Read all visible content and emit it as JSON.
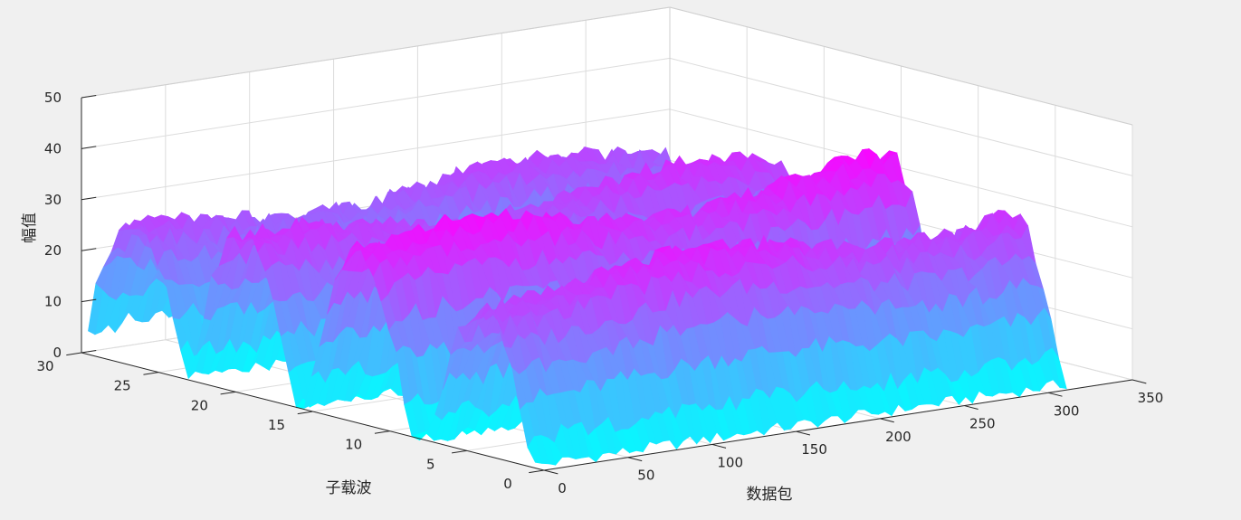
{
  "chart_data": {
    "type": "surface",
    "title": "",
    "xlabel": "数据包",
    "ylabel": "子载波",
    "zlabel": "幅值",
    "xlim": [
      0,
      350
    ],
    "ylim": [
      0,
      30
    ],
    "zlim": [
      0,
      50
    ],
    "xticks": [
      "0",
      "50",
      "100",
      "150",
      "200",
      "250",
      "300",
      "350"
    ],
    "yticks": [
      "0",
      "5",
      "10",
      "15",
      "20",
      "25",
      "30"
    ],
    "zticks": [
      "0",
      "10",
      "20",
      "30",
      "40",
      "50"
    ],
    "grid": true,
    "colormap": {
      "low": "#00ffff",
      "high": "#ff00ff"
    },
    "subcarriers": [
      1,
      30
    ],
    "packets": [
      1,
      320
    ],
    "ridges": [
      {
        "name": "",
        "subcarrier_center": 27,
        "packet_center": 1,
        "peak": 28
      },
      {
        "name": "",
        "subcarrier_center": 20,
        "packet_center": 1,
        "peak": 31
      },
      {
        "name": "",
        "subcarrier_center": 12.5,
        "packet_center": 1,
        "peak": 36
      },
      {
        "name": "",
        "subcarrier_center": 4.5,
        "packet_center": 1,
        "peak": 33
      }
    ],
    "ridge_peak_amplitude_range": [
      25,
      39
    ],
    "valley_amplitude": 0,
    "noise_amplitude": 2
  }
}
